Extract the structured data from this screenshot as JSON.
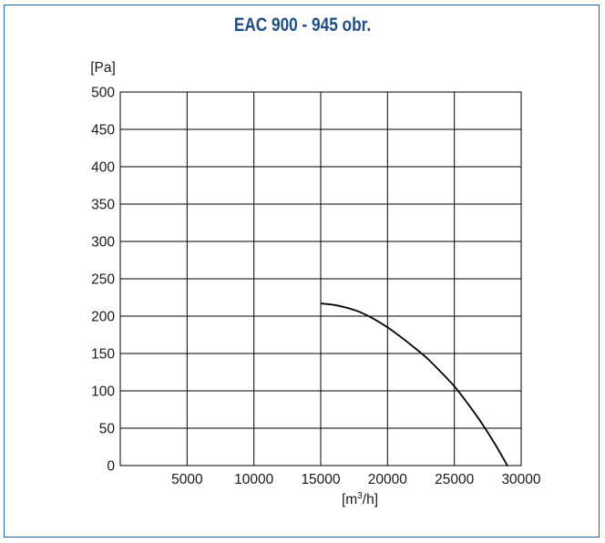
{
  "chart_data": {
    "type": "line",
    "title": "EAC 900 - 945 obr.",
    "ylabel_unit": "[Pa]",
    "xlabel_unit": {
      "base": "[m",
      "sup": "3",
      "tail": "/h]"
    },
    "xlim": [
      0,
      30000
    ],
    "ylim": [
      0,
      500
    ],
    "xticks": [
      5000,
      10000,
      15000,
      20000,
      25000,
      30000
    ],
    "xtick_labels": [
      "5000",
      "10000",
      "15000",
      "20000",
      "25000",
      "30000"
    ],
    "yticks": [
      0,
      50,
      100,
      150,
      200,
      250,
      300,
      350,
      400,
      450,
      500
    ],
    "ytick_labels": [
      "0",
      "50",
      "100",
      "150",
      "200",
      "250",
      "300",
      "350",
      "400",
      "450",
      "500"
    ],
    "grid": true,
    "series": [
      {
        "color": "#000000",
        "x": [
          15000,
          16000,
          17000,
          18000,
          19000,
          20000,
          21000,
          22000,
          23000,
          24000,
          25000,
          26000,
          27000,
          28000,
          29000
        ],
        "y": [
          217,
          215,
          211,
          205,
          196,
          185,
          172,
          158,
          143,
          125,
          106,
          83,
          58,
          30,
          -1
        ]
      }
    ]
  }
}
